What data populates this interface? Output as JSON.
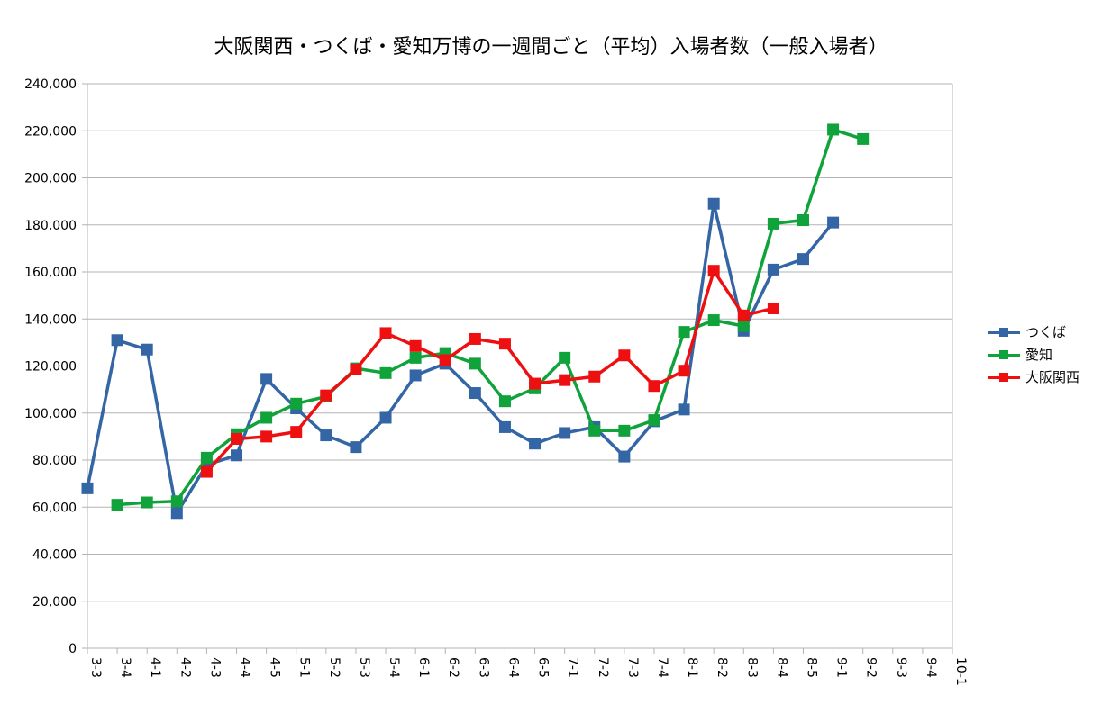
{
  "chart_data": {
    "type": "line",
    "title": "大阪関西・つくば・愛知万博の一週間ごと（平均）入場者数（一般入場者）",
    "xlabel": "",
    "ylabel": "",
    "ylim": [
      0,
      240000
    ],
    "yticks": [
      "0",
      "20,000",
      "40,000",
      "60,000",
      "80,000",
      "100,000",
      "120,000",
      "140,000",
      "160,000",
      "180,000",
      "200,000",
      "220,000",
      "240,000"
    ],
    "categories": [
      "3-3",
      "3-4",
      "4-1",
      "4-2",
      "4-3",
      "4-4",
      "4-5",
      "5-1",
      "5-2",
      "5-3",
      "5-4",
      "6-1",
      "6-2",
      "6-3",
      "6-4",
      "6-5",
      "7-1",
      "7-2",
      "7-3",
      "7-4",
      "8-1",
      "8-2",
      "8-3",
      "8-4",
      "8-5",
      "9-1",
      "9-2",
      "9-3",
      "9-4",
      "10-1"
    ],
    "grid": true,
    "legend_position": "right",
    "series": [
      {
        "name": "つくば",
        "color": "#3465a4",
        "values": [
          68000,
          131000,
          127000,
          57500,
          78000,
          82000,
          114500,
          102000,
          90500,
          85500,
          98000,
          116000,
          121000,
          108500,
          94000,
          87000,
          91500,
          94000,
          81500,
          96500,
          101500,
          189000,
          135000,
          161000,
          165500,
          181000,
          null,
          null,
          null,
          null
        ]
      },
      {
        "name": "愛知",
        "color": "#10a33b",
        "values": [
          null,
          61000,
          62000,
          62500,
          81000,
          91000,
          98000,
          104000,
          107000,
          119000,
          117000,
          123500,
          125500,
          121000,
          105000,
          110500,
          123500,
          92500,
          92500,
          97000,
          134500,
          139500,
          137000,
          180500,
          182000,
          220500,
          216500,
          null,
          null,
          null
        ]
      },
      {
        "name": "大阪関西",
        "color": "#ee1010",
        "values": [
          null,
          null,
          null,
          null,
          75000,
          89000,
          90000,
          92000,
          107500,
          118500,
          134000,
          128500,
          122500,
          131500,
          129500,
          112500,
          114000,
          115500,
          124500,
          111500,
          118000,
          160500,
          141500,
          144500,
          null,
          null,
          null,
          null,
          null,
          null
        ]
      }
    ]
  }
}
